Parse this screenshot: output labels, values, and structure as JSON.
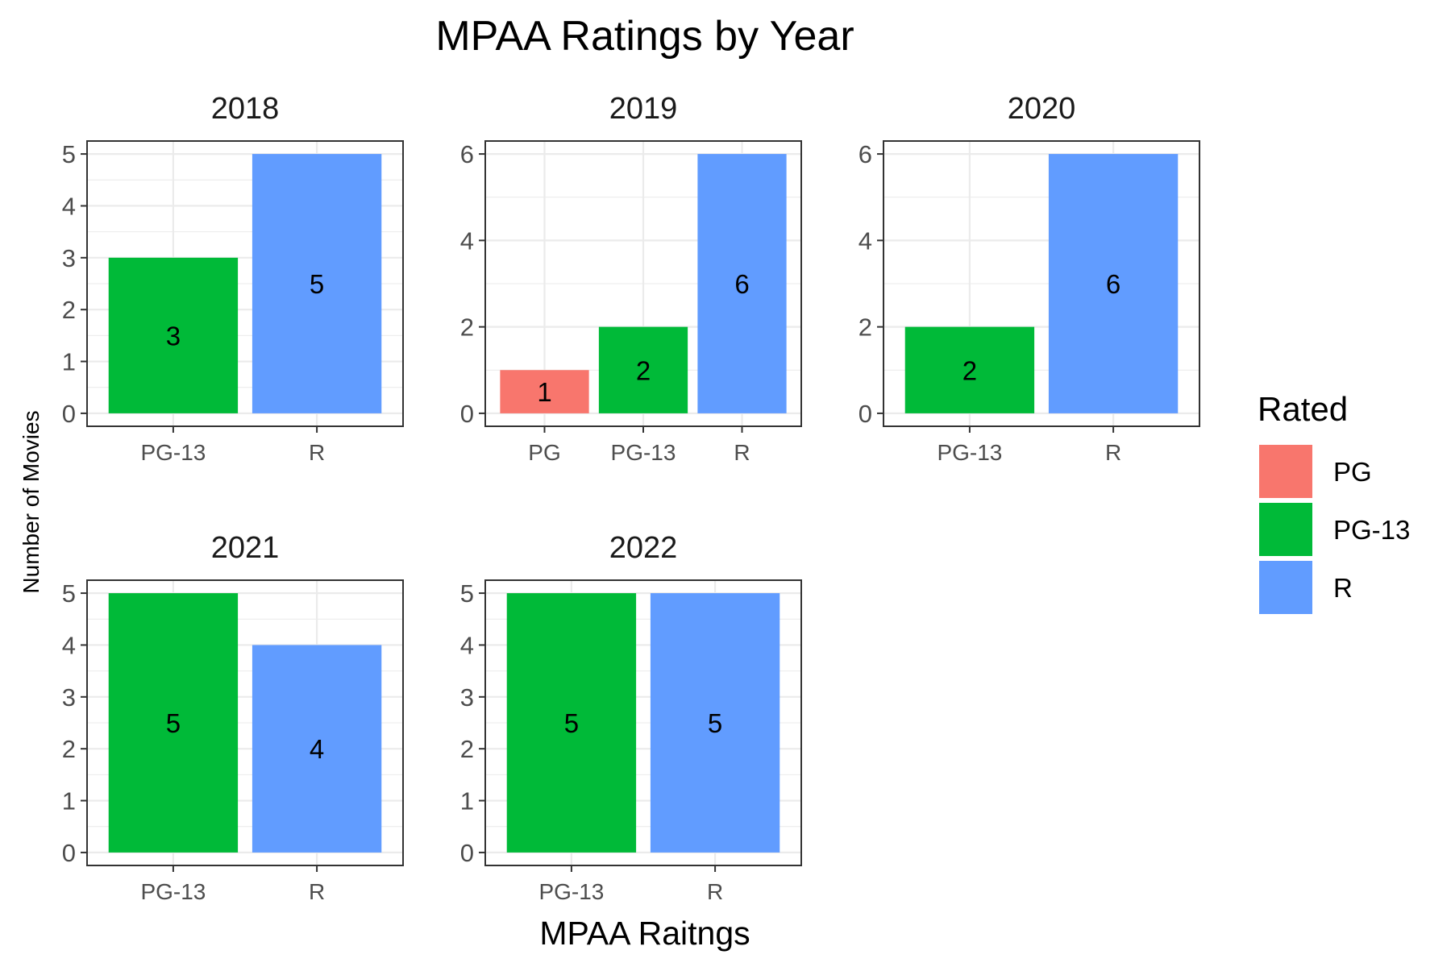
{
  "chart_data": {
    "type": "bar",
    "title": "MPAA Ratings by Year",
    "xlabel": "MPAA Raitngs",
    "ylabel": "Number of Movies",
    "grid": true,
    "legend": {
      "title": "Rated",
      "placement": "right",
      "entries": [
        {
          "name": "PG",
          "color": "#F8766D"
        },
        {
          "name": "PG-13",
          "color": "#00BA38"
        },
        {
          "name": "R",
          "color": "#619CFF"
        }
      ]
    },
    "panels": [
      {
        "facet": "2018",
        "categories": [
          "PG-13",
          "R"
        ],
        "values": [
          3,
          5
        ],
        "ylim": [
          0,
          5
        ],
        "yticks": [
          0,
          1,
          2,
          3,
          4,
          5
        ]
      },
      {
        "facet": "2019",
        "categories": [
          "PG",
          "PG-13",
          "R"
        ],
        "values": [
          1,
          2,
          6
        ],
        "ylim": [
          0,
          6
        ],
        "yticks": [
          0,
          2,
          4,
          6
        ]
      },
      {
        "facet": "2020",
        "categories": [
          "PG-13",
          "R"
        ],
        "values": [
          2,
          6
        ],
        "ylim": [
          0,
          6
        ],
        "yticks": [
          0,
          2,
          4,
          6
        ]
      },
      {
        "facet": "2021",
        "categories": [
          "PG-13",
          "R"
        ],
        "values": [
          5,
          4
        ],
        "ylim": [
          0,
          5
        ],
        "yticks": [
          0,
          1,
          2,
          3,
          4,
          5
        ]
      },
      {
        "facet": "2022",
        "categories": [
          "PG-13",
          "R"
        ],
        "values": [
          5,
          5
        ],
        "ylim": [
          0,
          5
        ],
        "yticks": [
          0,
          1,
          2,
          3,
          4,
          5
        ]
      }
    ]
  }
}
